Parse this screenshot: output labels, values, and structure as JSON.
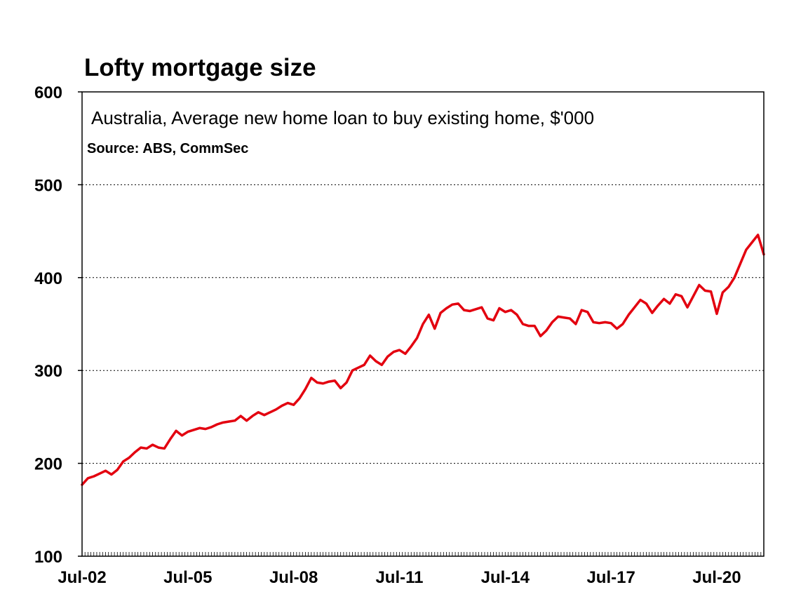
{
  "chart_data": {
    "type": "line",
    "title": "Lofty mortgage size",
    "subtitle": "Australia, Average new home loan to buy existing home, $'000",
    "source": "Source: ABS, CommSec",
    "xlabel": "",
    "ylabel": "",
    "ylim": [
      100,
      600
    ],
    "yticks": [
      "100",
      "200",
      "300",
      "400",
      "500",
      "600"
    ],
    "xlim": [
      "2002-07",
      "2021-11"
    ],
    "xticks": [
      {
        "date": "2002-07",
        "label": "Jul-02"
      },
      {
        "date": "2005-07",
        "label": "Jul-05"
      },
      {
        "date": "2008-07",
        "label": "Jul-08"
      },
      {
        "date": "2011-07",
        "label": "Jul-11"
      },
      {
        "date": "2014-07",
        "label": "Jul-14"
      },
      {
        "date": "2017-07",
        "label": "Jul-17"
      },
      {
        "date": "2020-07",
        "label": "Jul-20"
      }
    ],
    "grid": "horizontal dotted",
    "legend": "none",
    "series": [
      {
        "color": "#e3000f",
        "points": [
          [
            "2002-07",
            177
          ],
          [
            "2002-09",
            184
          ],
          [
            "2002-11",
            186
          ],
          [
            "2003-01",
            189
          ],
          [
            "2003-03",
            192
          ],
          [
            "2003-05",
            188
          ],
          [
            "2003-07",
            193
          ],
          [
            "2003-09",
            202
          ],
          [
            "2003-11",
            206
          ],
          [
            "2004-01",
            212
          ],
          [
            "2004-03",
            217
          ],
          [
            "2004-05",
            216
          ],
          [
            "2004-07",
            220
          ],
          [
            "2004-09",
            217
          ],
          [
            "2004-11",
            216
          ],
          [
            "2005-01",
            226
          ],
          [
            "2005-03",
            235
          ],
          [
            "2005-05",
            230
          ],
          [
            "2005-07",
            234
          ],
          [
            "2005-09",
            236
          ],
          [
            "2005-11",
            238
          ],
          [
            "2006-01",
            237
          ],
          [
            "2006-03",
            239
          ],
          [
            "2006-05",
            242
          ],
          [
            "2006-07",
            244
          ],
          [
            "2006-09",
            245
          ],
          [
            "2006-11",
            246
          ],
          [
            "2007-01",
            251
          ],
          [
            "2007-03",
            246
          ],
          [
            "2007-05",
            251
          ],
          [
            "2007-07",
            255
          ],
          [
            "2007-09",
            252
          ],
          [
            "2007-11",
            255
          ],
          [
            "2008-01",
            258
          ],
          [
            "2008-03",
            262
          ],
          [
            "2008-05",
            265
          ],
          [
            "2008-07",
            263
          ],
          [
            "2008-09",
            270
          ],
          [
            "2008-11",
            280
          ],
          [
            "2009-01",
            292
          ],
          [
            "2009-03",
            287
          ],
          [
            "2009-05",
            286
          ],
          [
            "2009-07",
            288
          ],
          [
            "2009-09",
            289
          ],
          [
            "2009-11",
            281
          ],
          [
            "2010-01",
            287
          ],
          [
            "2010-03",
            300
          ],
          [
            "2010-05",
            303
          ],
          [
            "2010-07",
            306
          ],
          [
            "2010-09",
            316
          ],
          [
            "2010-11",
            310
          ],
          [
            "2011-01",
            306
          ],
          [
            "2011-03",
            315
          ],
          [
            "2011-05",
            320
          ],
          [
            "2011-07",
            322
          ],
          [
            "2011-09",
            318
          ],
          [
            "2011-11",
            326
          ],
          [
            "2012-01",
            335
          ],
          [
            "2012-03",
            350
          ],
          [
            "2012-05",
            360
          ],
          [
            "2012-07",
            345
          ],
          [
            "2012-09",
            362
          ],
          [
            "2012-11",
            367
          ],
          [
            "2013-01",
            371
          ],
          [
            "2013-03",
            372
          ],
          [
            "2013-05",
            365
          ],
          [
            "2013-07",
            364
          ],
          [
            "2013-09",
            366
          ],
          [
            "2013-11",
            368
          ],
          [
            "2014-01",
            356
          ],
          [
            "2014-03",
            354
          ],
          [
            "2014-05",
            367
          ],
          [
            "2014-07",
            363
          ],
          [
            "2014-09",
            365
          ],
          [
            "2014-11",
            360
          ],
          [
            "2015-01",
            350
          ],
          [
            "2015-03",
            348
          ],
          [
            "2015-05",
            348
          ],
          [
            "2015-07",
            337
          ],
          [
            "2015-09",
            343
          ],
          [
            "2015-11",
            352
          ],
          [
            "2016-01",
            358
          ],
          [
            "2016-03",
            357
          ],
          [
            "2016-05",
            356
          ],
          [
            "2016-07",
            350
          ],
          [
            "2016-09",
            365
          ],
          [
            "2016-11",
            363
          ],
          [
            "2017-01",
            352
          ],
          [
            "2017-03",
            351
          ],
          [
            "2017-05",
            352
          ],
          [
            "2017-07",
            351
          ],
          [
            "2017-09",
            345
          ],
          [
            "2017-11",
            350
          ],
          [
            "2018-01",
            360
          ],
          [
            "2018-03",
            368
          ],
          [
            "2018-05",
            376
          ],
          [
            "2018-07",
            372
          ],
          [
            "2018-09",
            362
          ],
          [
            "2018-11",
            370
          ],
          [
            "2019-01",
            377
          ],
          [
            "2019-03",
            372
          ],
          [
            "2019-05",
            382
          ],
          [
            "2019-07",
            380
          ],
          [
            "2019-09",
            368
          ],
          [
            "2019-11",
            380
          ],
          [
            "2020-01",
            392
          ],
          [
            "2020-03",
            386
          ],
          [
            "2020-05",
            385
          ],
          [
            "2020-07",
            361
          ],
          [
            "2020-09",
            384
          ],
          [
            "2020-11",
            390
          ],
          [
            "2021-01",
            400
          ],
          [
            "2021-03",
            415
          ],
          [
            "2021-05",
            430
          ],
          [
            "2021-07",
            438
          ],
          [
            "2021-09",
            446
          ],
          [
            "2021-11",
            425
          ]
        ]
      }
    ]
  }
}
